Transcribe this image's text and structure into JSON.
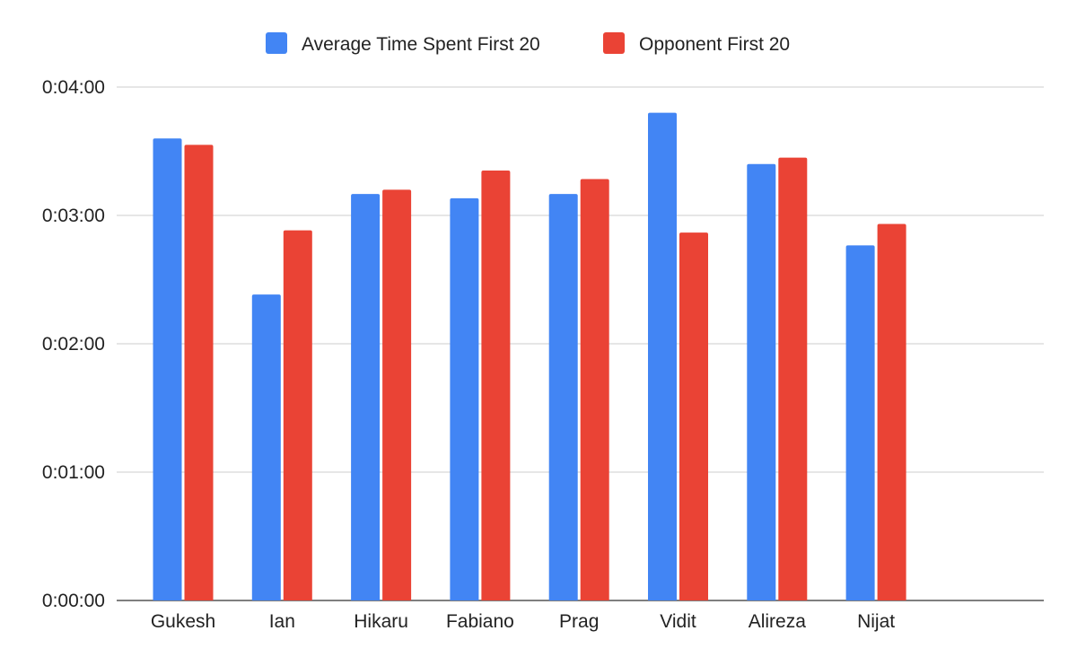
{
  "chart_data": {
    "type": "bar",
    "title": "",
    "xlabel": "",
    "ylabel": "",
    "categories": [
      "Gukesh",
      "Ian",
      "Hikaru",
      "Fabiano",
      "Prag",
      "Vidit",
      "Alireza",
      "Nijat"
    ],
    "series": [
      {
        "name": "Average Time Spent First 20",
        "color": "#4285F4",
        "values_seconds": [
          216,
          143,
          190,
          188,
          190,
          228,
          204,
          166
        ]
      },
      {
        "name": "Opponent First 20",
        "color": "#EA4335",
        "values_seconds": [
          213,
          173,
          192,
          201,
          197,
          172,
          207,
          176
        ]
      }
    ],
    "y_ticks": [
      "0:00:00",
      "0:01:00",
      "0:02:00",
      "0:03:00",
      "0:04:00"
    ],
    "y_tick_values_seconds": [
      0,
      60,
      120,
      180,
      240
    ],
    "ylim_seconds": [
      0,
      240
    ],
    "grid": true,
    "legend_position": "top"
  }
}
